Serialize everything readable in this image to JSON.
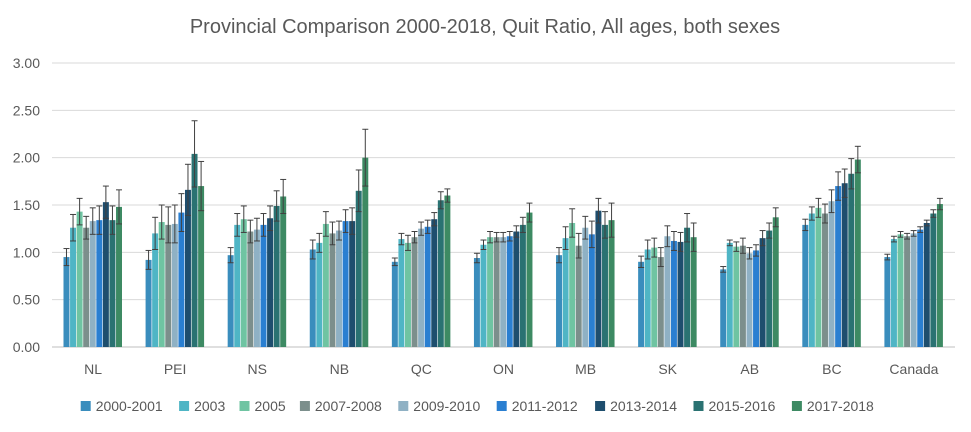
{
  "chart_data": {
    "type": "bar",
    "title": "Provincial Comparison 2000-2018, Quit Ratio, All ages, both sexes",
    "xlabel": "",
    "ylabel": "",
    "ylim": [
      0,
      3
    ],
    "yticks": [
      "0.00",
      "0.50",
      "1.00",
      "1.50",
      "2.00",
      "2.50",
      "3.00"
    ],
    "grid": true,
    "legend_position": "bottom",
    "error_bars": true,
    "categories": [
      "NL",
      "PEI",
      "NS",
      "NB",
      "QC",
      "ON",
      "MB",
      "SK",
      "AB",
      "BC",
      "Canada"
    ],
    "series": [
      {
        "name": "2000-2001",
        "color": "#3a8dbd",
        "values": [
          0.95,
          0.92,
          0.97,
          1.03,
          0.9,
          0.94,
          0.97,
          0.9,
          0.82,
          1.29,
          0.95
        ],
        "errors": [
          0.09,
          0.1,
          0.08,
          0.1,
          0.04,
          0.05,
          0.08,
          0.06,
          0.03,
          0.06,
          0.03
        ]
      },
      {
        "name": "2003",
        "color": "#4fb5c5",
        "values": [
          1.26,
          1.2,
          1.29,
          1.1,
          1.14,
          1.08,
          1.15,
          1.03,
          1.1,
          1.41,
          1.14
        ],
        "errors": [
          0.14,
          0.17,
          0.12,
          0.1,
          0.06,
          0.05,
          0.12,
          0.1,
          0.03,
          0.07,
          0.03
        ]
      },
      {
        "name": "2005",
        "color": "#6fc4a2",
        "values": [
          1.43,
          1.32,
          1.35,
          1.3,
          1.1,
          1.16,
          1.31,
          1.05,
          1.06,
          1.47,
          1.19
        ],
        "errors": [
          0.14,
          0.18,
          0.14,
          0.13,
          0.08,
          0.06,
          0.15,
          0.1,
          0.05,
          0.1,
          0.03
        ]
      },
      {
        "name": "2007-2008",
        "color": "#7c8f8c",
        "values": [
          1.26,
          1.29,
          1.22,
          1.2,
          1.16,
          1.16,
          1.07,
          0.95,
          1.07,
          1.41,
          1.17
        ],
        "errors": [
          0.12,
          0.19,
          0.12,
          0.12,
          0.06,
          0.05,
          0.13,
          0.1,
          0.08,
          0.1,
          0.03
        ]
      },
      {
        "name": "2009-2010",
        "color": "#8fb1c4",
        "values": [
          1.33,
          1.3,
          1.24,
          1.23,
          1.25,
          1.16,
          1.26,
          1.17,
          0.99,
          1.54,
          1.2
        ],
        "errors": [
          0.14,
          0.2,
          0.12,
          0.1,
          0.07,
          0.05,
          0.12,
          0.11,
          0.06,
          0.12,
          0.03
        ]
      },
      {
        "name": "2011-2012",
        "color": "#2a7fd1",
        "values": [
          1.34,
          1.42,
          1.29,
          1.33,
          1.27,
          1.17,
          1.19,
          1.12,
          1.02,
          1.7,
          1.24
        ],
        "errors": [
          0.15,
          0.2,
          0.12,
          0.12,
          0.07,
          0.05,
          0.14,
          0.1,
          0.06,
          0.15,
          0.03
        ]
      },
      {
        "name": "2013-2014",
        "color": "#1e4e6e",
        "values": [
          1.53,
          1.66,
          1.36,
          1.33,
          1.35,
          1.22,
          1.44,
          1.11,
          1.15,
          1.73,
          1.31
        ],
        "errors": [
          0.17,
          0.27,
          0.13,
          0.14,
          0.07,
          0.06,
          0.13,
          0.1,
          0.08,
          0.15,
          0.03
        ]
      },
      {
        "name": "2015-2016",
        "color": "#2a7272",
        "values": [
          1.34,
          2.04,
          1.49,
          1.65,
          1.55,
          1.29,
          1.29,
          1.26,
          1.23,
          1.83,
          1.41
        ],
        "errors": [
          0.15,
          0.35,
          0.16,
          0.22,
          0.09,
          0.08,
          0.14,
          0.15,
          0.08,
          0.16,
          0.04
        ]
      },
      {
        "name": "2017-2018",
        "color": "#3d8a63",
        "values": [
          1.48,
          1.7,
          1.59,
          2.0,
          1.6,
          1.42,
          1.34,
          1.16,
          1.37,
          1.98,
          1.51
        ],
        "errors": [
          0.18,
          0.26,
          0.18,
          0.3,
          0.07,
          0.1,
          0.18,
          0.15,
          0.1,
          0.14,
          0.06
        ]
      }
    ]
  }
}
